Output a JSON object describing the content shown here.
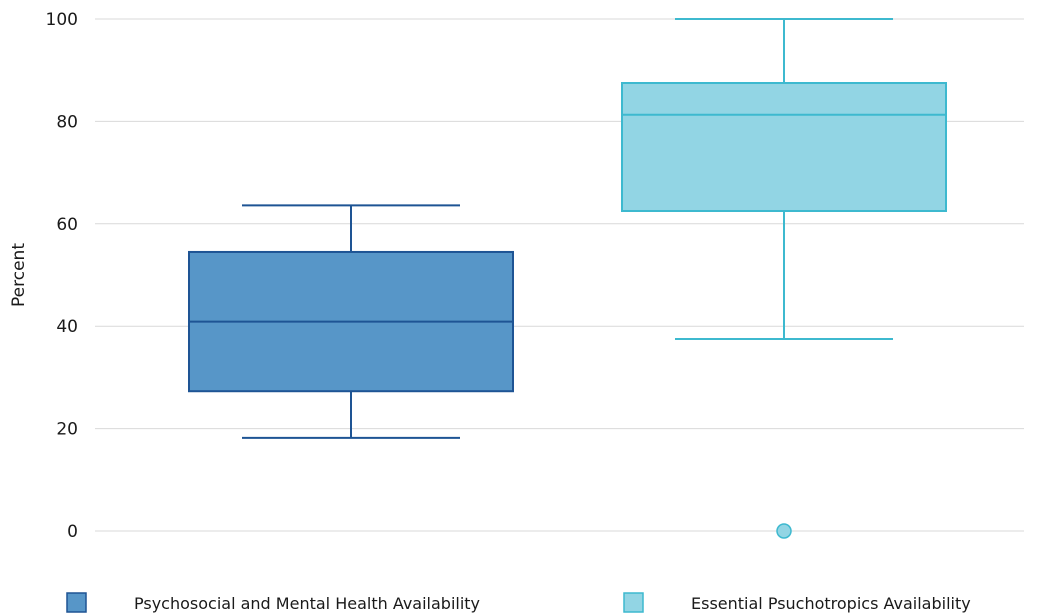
{
  "chart_data": {
    "type": "box",
    "ylabel": "Percent",
    "xlabel": "",
    "ylim": [
      0,
      100
    ],
    "yticks": [
      0,
      20,
      40,
      60,
      80,
      100
    ],
    "grid": true,
    "legend_position": "bottom",
    "series": [
      {
        "name": "Psychosocial and Mental Health Availability",
        "min": 18.2,
        "q1": 27.3,
        "median": 40.9,
        "q3": 54.5,
        "max": 63.6,
        "outliers": [],
        "fill": "#5796C8",
        "stroke": "#1E5494"
      },
      {
        "name": "Essential Psuchotropics Availability",
        "min": 37.5,
        "q1": 62.5,
        "median": 81.3,
        "q3": 87.5,
        "max": 100,
        "outliers": [
          0
        ],
        "fill": "#92D5E4",
        "stroke": "#3DB9CF"
      }
    ]
  }
}
